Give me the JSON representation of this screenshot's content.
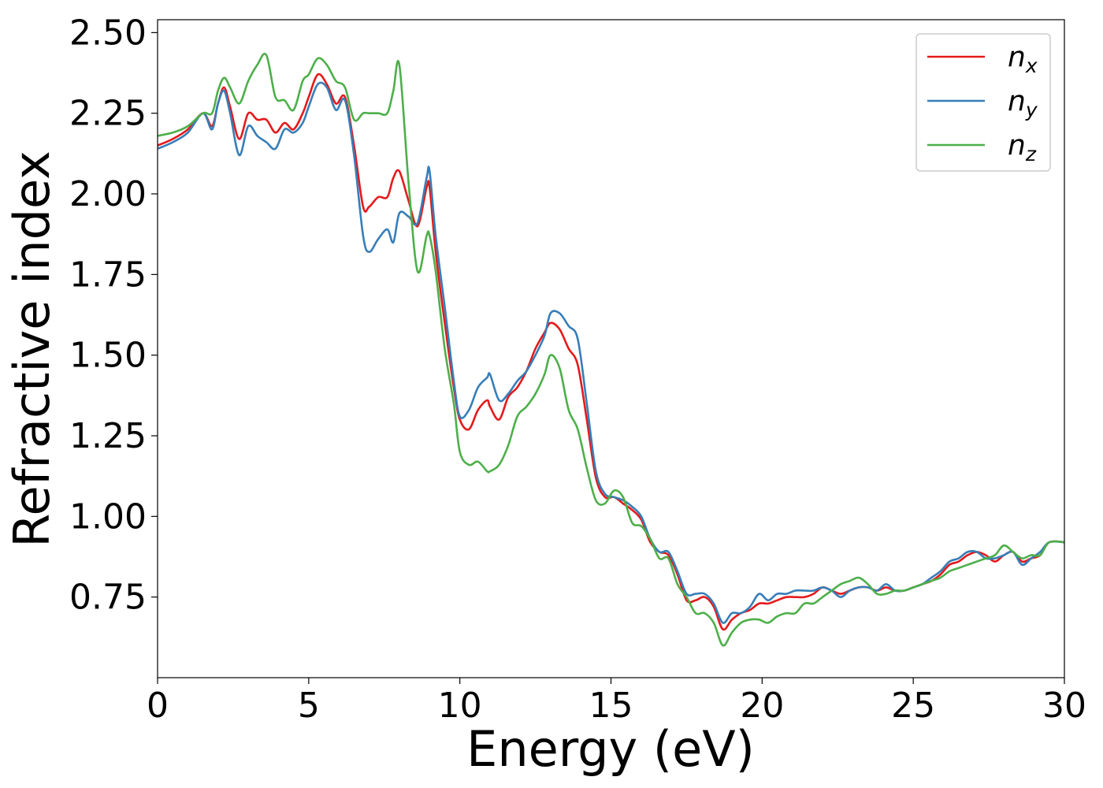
{
  "chart_data": {
    "type": "line",
    "xlabel": "Energy (eV)",
    "ylabel": "Refractive index",
    "xlim": [
      0,
      30
    ],
    "ylim": [
      0.5,
      2.54
    ],
    "xticks": [
      "0",
      "5",
      "10",
      "15",
      "20",
      "25",
      "30"
    ],
    "yticks": [
      "0.75",
      "1.00",
      "1.25",
      "1.50",
      "1.75",
      "2.00",
      "2.25",
      "2.50"
    ],
    "grid": false,
    "legend_position": "top-right",
    "series": [
      {
        "name": "n_x",
        "legend_base": "n",
        "legend_sub": "x",
        "color": "#e41a1c",
        "x": [
          0,
          0.5,
          1,
          1.5,
          1.8,
          2,
          2.2,
          2.4,
          2.7,
          3,
          3.3,
          3.6,
          3.9,
          4.2,
          4.5,
          4.8,
          5.0,
          5.3,
          5.6,
          5.9,
          6.2,
          6.5,
          6.8,
          7.0,
          7.3,
          7.6,
          7.8,
          8.0,
          8.3,
          8.6,
          8.9,
          9.0,
          9.2,
          9.5,
          9.8,
          10.0,
          10.3,
          10.6,
          10.9,
          11.0,
          11.3,
          11.6,
          11.9,
          12.2,
          12.5,
          12.8,
          13.0,
          13.3,
          13.6,
          13.9,
          14.2,
          14.5,
          14.8,
          15.1,
          15.4,
          15.7,
          16.0,
          16.3,
          16.6,
          16.9,
          17.2,
          17.5,
          17.8,
          18.1,
          18.4,
          18.7,
          19.0,
          19.3,
          19.6,
          19.9,
          20.2,
          20.5,
          20.8,
          21.1,
          21.4,
          21.7,
          22.0,
          22.3,
          22.6,
          22.9,
          23.2,
          23.5,
          23.8,
          24.1,
          24.4,
          24.7,
          25.0,
          25.3,
          25.6,
          25.9,
          26.2,
          26.5,
          26.8,
          27.1,
          27.4,
          27.7,
          28.0,
          28.3,
          28.6,
          28.9,
          29.2,
          29.5,
          30
        ],
        "y": [
          2.15,
          2.17,
          2.2,
          2.25,
          2.21,
          2.28,
          2.33,
          2.27,
          2.17,
          2.25,
          2.23,
          2.23,
          2.19,
          2.22,
          2.2,
          2.25,
          2.3,
          2.37,
          2.34,
          2.28,
          2.3,
          2.15,
          1.96,
          1.96,
          1.99,
          1.99,
          2.05,
          2.07,
          1.98,
          1.9,
          2.02,
          2.02,
          1.82,
          1.6,
          1.4,
          1.3,
          1.27,
          1.33,
          1.36,
          1.34,
          1.3,
          1.37,
          1.4,
          1.45,
          1.52,
          1.57,
          1.6,
          1.58,
          1.52,
          1.47,
          1.3,
          1.12,
          1.06,
          1.06,
          1.04,
          1.02,
          0.99,
          0.92,
          0.89,
          0.88,
          0.82,
          0.74,
          0.74,
          0.75,
          0.72,
          0.65,
          0.68,
          0.7,
          0.71,
          0.73,
          0.73,
          0.74,
          0.75,
          0.75,
          0.75,
          0.76,
          0.78,
          0.77,
          0.76,
          0.77,
          0.78,
          0.78,
          0.77,
          0.78,
          0.77,
          0.77,
          0.78,
          0.79,
          0.8,
          0.82,
          0.85,
          0.86,
          0.88,
          0.89,
          0.88,
          0.86,
          0.88,
          0.89,
          0.86,
          0.87,
          0.88,
          0.92,
          0.92
        ]
      },
      {
        "name": "n_y",
        "legend_base": "n",
        "legend_sub": "y",
        "color": "#377eb8",
        "x": [
          0,
          0.5,
          1,
          1.5,
          1.8,
          2,
          2.2,
          2.4,
          2.7,
          3,
          3.3,
          3.6,
          3.9,
          4.2,
          4.5,
          4.8,
          5.0,
          5.3,
          5.6,
          5.9,
          6.2,
          6.5,
          6.8,
          7.0,
          7.3,
          7.6,
          7.8,
          8.0,
          8.3,
          8.6,
          8.9,
          9.0,
          9.2,
          9.5,
          9.8,
          10.0,
          10.3,
          10.6,
          10.9,
          11.0,
          11.3,
          11.6,
          11.9,
          12.2,
          12.5,
          12.8,
          13.0,
          13.3,
          13.6,
          13.9,
          14.2,
          14.5,
          14.8,
          15.1,
          15.4,
          15.7,
          16.0,
          16.3,
          16.6,
          16.9,
          17.2,
          17.5,
          17.8,
          18.1,
          18.4,
          18.7,
          19.0,
          19.3,
          19.6,
          19.9,
          20.2,
          20.5,
          20.8,
          21.1,
          21.4,
          21.7,
          22.0,
          22.3,
          22.6,
          22.9,
          23.2,
          23.5,
          23.8,
          24.1,
          24.4,
          24.7,
          25.0,
          25.3,
          25.6,
          25.9,
          26.2,
          26.5,
          26.8,
          27.1,
          27.4,
          27.7,
          28.0,
          28.3,
          28.6,
          28.9,
          29.2,
          29.5,
          30
        ],
        "y": [
          2.14,
          2.16,
          2.19,
          2.25,
          2.2,
          2.28,
          2.32,
          2.25,
          2.12,
          2.21,
          2.18,
          2.16,
          2.14,
          2.2,
          2.19,
          2.22,
          2.27,
          2.34,
          2.33,
          2.26,
          2.29,
          2.12,
          1.87,
          1.82,
          1.86,
          1.89,
          1.85,
          1.94,
          1.93,
          1.91,
          2.05,
          2.07,
          1.87,
          1.65,
          1.42,
          1.31,
          1.33,
          1.4,
          1.43,
          1.44,
          1.36,
          1.38,
          1.42,
          1.45,
          1.5,
          1.56,
          1.63,
          1.63,
          1.59,
          1.55,
          1.35,
          1.14,
          1.07,
          1.06,
          1.05,
          1.03,
          1.0,
          0.93,
          0.89,
          0.89,
          0.83,
          0.76,
          0.76,
          0.76,
          0.73,
          0.67,
          0.7,
          0.7,
          0.72,
          0.76,
          0.74,
          0.76,
          0.76,
          0.77,
          0.77,
          0.77,
          0.78,
          0.77,
          0.75,
          0.77,
          0.78,
          0.78,
          0.77,
          0.79,
          0.77,
          0.77,
          0.78,
          0.79,
          0.81,
          0.83,
          0.86,
          0.87,
          0.89,
          0.89,
          0.87,
          0.87,
          0.88,
          0.89,
          0.85,
          0.87,
          0.89,
          0.92,
          0.92
        ]
      },
      {
        "name": "n_z",
        "legend_base": "n",
        "legend_sub": "z",
        "color": "#4daf4a",
        "x": [
          0,
          0.5,
          1,
          1.5,
          1.8,
          2,
          2.2,
          2.4,
          2.7,
          3,
          3.3,
          3.6,
          3.9,
          4.2,
          4.5,
          4.8,
          5.0,
          5.3,
          5.6,
          5.9,
          6.2,
          6.5,
          6.8,
          7.0,
          7.3,
          7.6,
          7.8,
          8.0,
          8.3,
          8.6,
          8.9,
          9.0,
          9.2,
          9.5,
          9.8,
          10.0,
          10.3,
          10.6,
          10.9,
          11.0,
          11.3,
          11.6,
          11.9,
          12.2,
          12.5,
          12.8,
          13.0,
          13.3,
          13.6,
          13.9,
          14.2,
          14.5,
          14.8,
          15.1,
          15.4,
          15.7,
          16.0,
          16.3,
          16.6,
          16.9,
          17.2,
          17.5,
          17.8,
          18.1,
          18.4,
          18.7,
          19.0,
          19.3,
          19.6,
          19.9,
          20.2,
          20.5,
          20.8,
          21.1,
          21.4,
          21.7,
          22.0,
          22.3,
          22.6,
          22.9,
          23.2,
          23.5,
          23.8,
          24.1,
          24.4,
          24.7,
          25.0,
          25.3,
          25.6,
          25.9,
          26.2,
          26.5,
          26.8,
          27.1,
          27.4,
          27.7,
          28.0,
          28.3,
          28.6,
          28.9,
          29.2,
          29.5,
          30
        ],
        "y": [
          2.18,
          2.19,
          2.21,
          2.25,
          2.25,
          2.32,
          2.36,
          2.33,
          2.28,
          2.35,
          2.4,
          2.43,
          2.3,
          2.29,
          2.26,
          2.35,
          2.37,
          2.42,
          2.4,
          2.35,
          2.33,
          2.23,
          2.25,
          2.25,
          2.25,
          2.25,
          2.32,
          2.4,
          2.04,
          1.76,
          1.87,
          1.87,
          1.76,
          1.52,
          1.35,
          1.2,
          1.16,
          1.17,
          1.14,
          1.14,
          1.16,
          1.22,
          1.31,
          1.34,
          1.38,
          1.44,
          1.5,
          1.46,
          1.33,
          1.27,
          1.15,
          1.05,
          1.04,
          1.08,
          1.06,
          0.98,
          0.97,
          0.93,
          0.87,
          0.87,
          0.79,
          0.75,
          0.7,
          0.7,
          0.67,
          0.6,
          0.64,
          0.67,
          0.68,
          0.68,
          0.67,
          0.69,
          0.7,
          0.7,
          0.73,
          0.73,
          0.75,
          0.77,
          0.79,
          0.8,
          0.81,
          0.79,
          0.76,
          0.76,
          0.77,
          0.77,
          0.78,
          0.79,
          0.8,
          0.81,
          0.83,
          0.84,
          0.85,
          0.86,
          0.87,
          0.88,
          0.91,
          0.89,
          0.87,
          0.88,
          0.88,
          0.92,
          0.92
        ]
      }
    ]
  }
}
